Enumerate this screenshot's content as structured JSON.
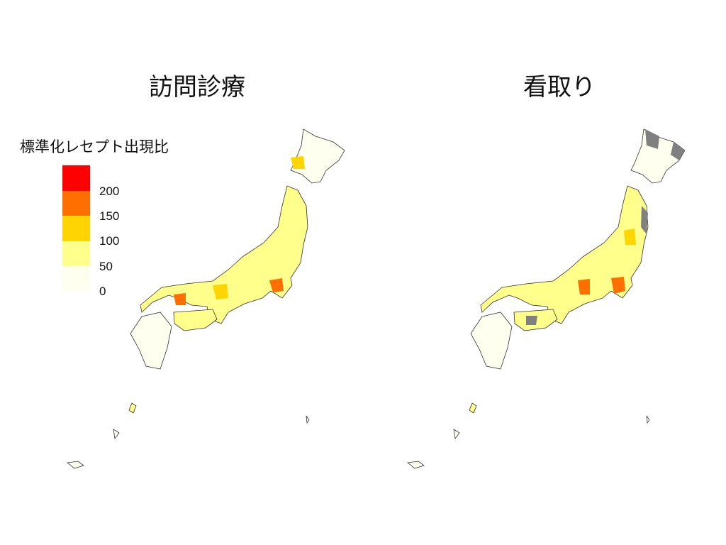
{
  "maps": [
    {
      "title": "訪問診療"
    },
    {
      "title": "看取り"
    }
  ],
  "legend": {
    "title": "標準化レセプト出現比",
    "bins": [
      {
        "color": "#ff0000"
      },
      {
        "color": "#ff6f00",
        "label": "200"
      },
      {
        "color": "#ffd500",
        "label": "150"
      },
      {
        "color": "#ffff8c",
        "label": "100"
      },
      {
        "color": "#fffff0",
        "label": "50"
      }
    ],
    "zero_label": "0",
    "no_data_color": "#808080"
  }
}
